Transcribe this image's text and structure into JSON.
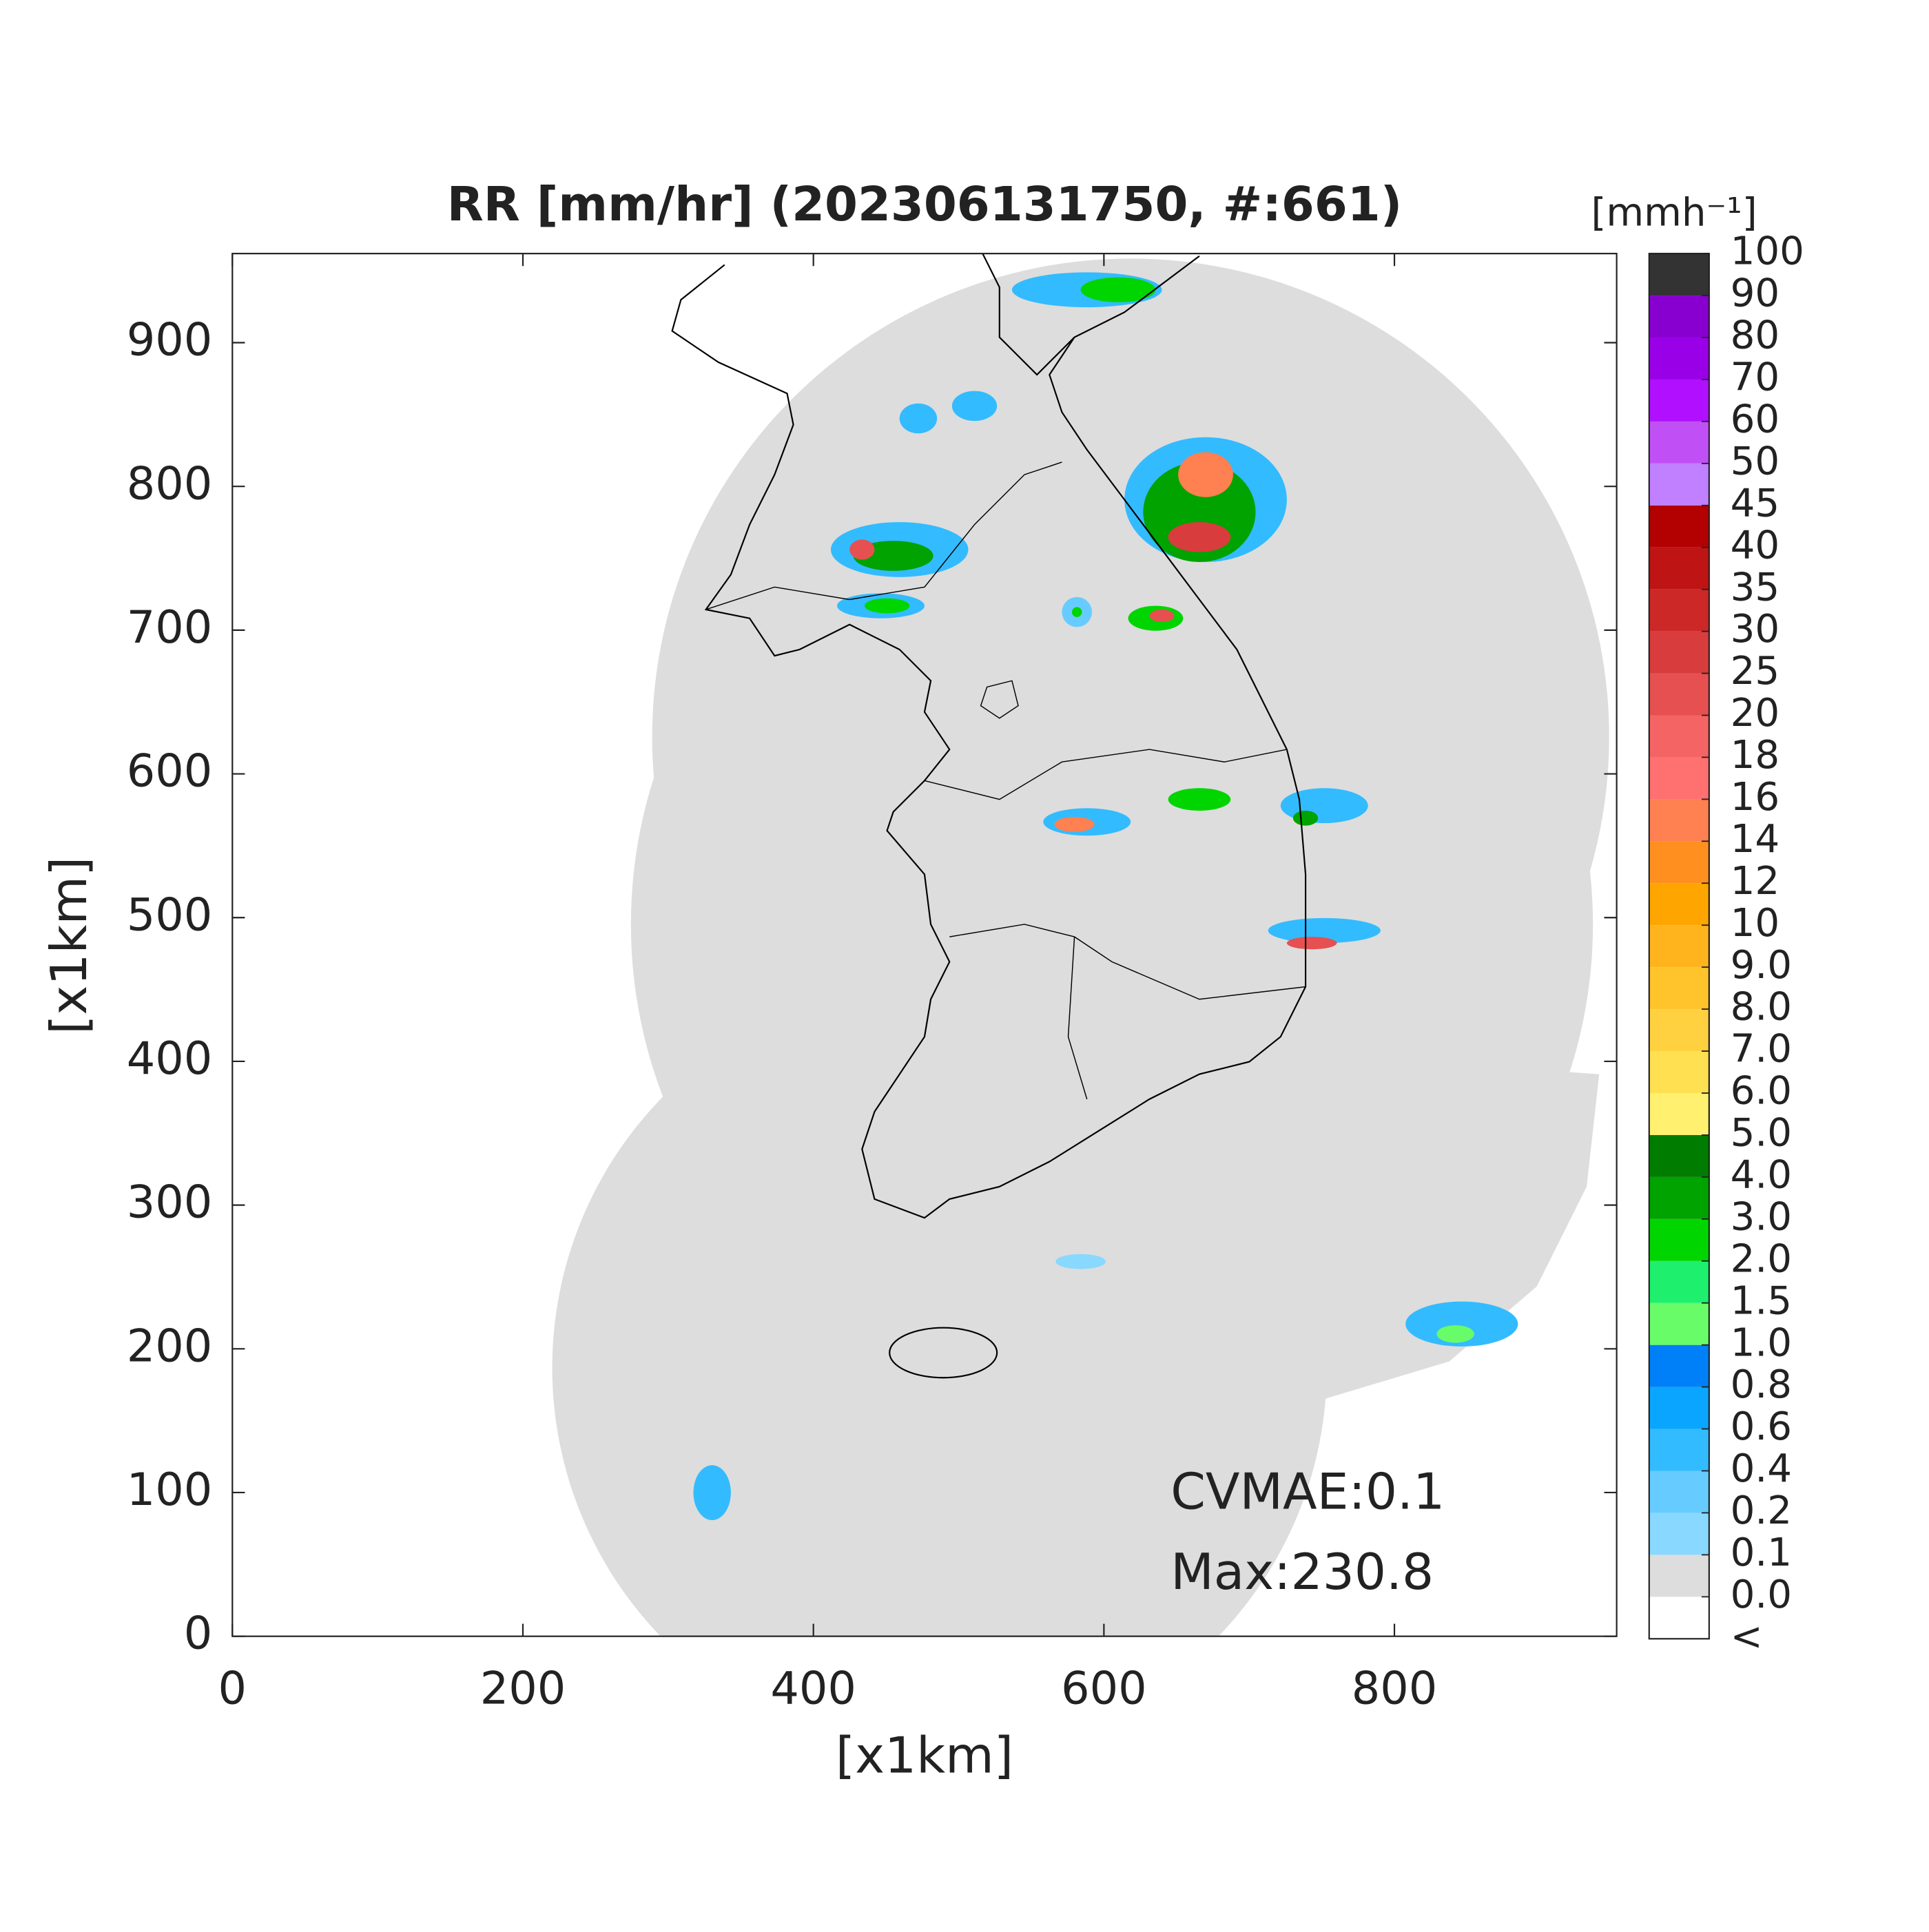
{
  "chart_data": {
    "type": "map",
    "title": "RR [mm/hr] (202306131750, #:661)",
    "xlabel": "[x1km]",
    "ylabel": "[x1km]",
    "xlim": [
      0,
      953
    ],
    "ylim": [
      0,
      962
    ],
    "xticks": [
      0,
      200,
      400,
      600,
      800
    ],
    "yticks": [
      0,
      100,
      200,
      300,
      400,
      500,
      600,
      700,
      800,
      900
    ],
    "colorbar": {
      "label": "[mmh⁻¹]",
      "under_label": "<",
      "levels": [
        {
          "value": 0,
          "label": "0.0"
        },
        0.1,
        0.2,
        0.4,
        0.6,
        0.8,
        {
          "value": 1,
          "label": "1.0"
        },
        1.5,
        {
          "value": 2,
          "label": "2.0"
        },
        {
          "value": 3,
          "label": "3.0"
        },
        {
          "value": 4,
          "label": "4.0"
        },
        {
          "value": 5,
          "label": "5.0"
        },
        {
          "value": 6,
          "label": "6.0"
        },
        {
          "value": 7,
          "label": "7.0"
        },
        {
          "value": 8,
          "label": "8.0"
        },
        {
          "value": 9,
          "label": "9.0"
        },
        10,
        12,
        14,
        16,
        18,
        20,
        25,
        30,
        35,
        40,
        45,
        50,
        60,
        70,
        80,
        90,
        100
      ],
      "colors": [
        "#ffffff",
        "#dddddd",
        "#88d8ff",
        "#66ccff",
        "#33bbff",
        "#0aa5ff",
        "#0080f8",
        "#69fc69",
        "#1ef06e",
        "#00d500",
        "#00a300",
        "#007d00",
        "#fff070",
        "#ffe050",
        "#ffd040",
        "#ffc32c",
        "#ffb41e",
        "#ffa500",
        "#ff9020",
        "#ff8050",
        "#ff7070",
        "#f56464",
        "#e65050",
        "#d93c3c",
        "#cc2828",
        "#bf1414",
        "#b30000",
        "#c080ff",
        "#c050f5",
        "#b010ff",
        "#9a00e8",
        "#8800d0",
        "#333333"
      ]
    },
    "annotations": [
      "CVMAE:0.1",
      "Max:230.8"
    ]
  }
}
